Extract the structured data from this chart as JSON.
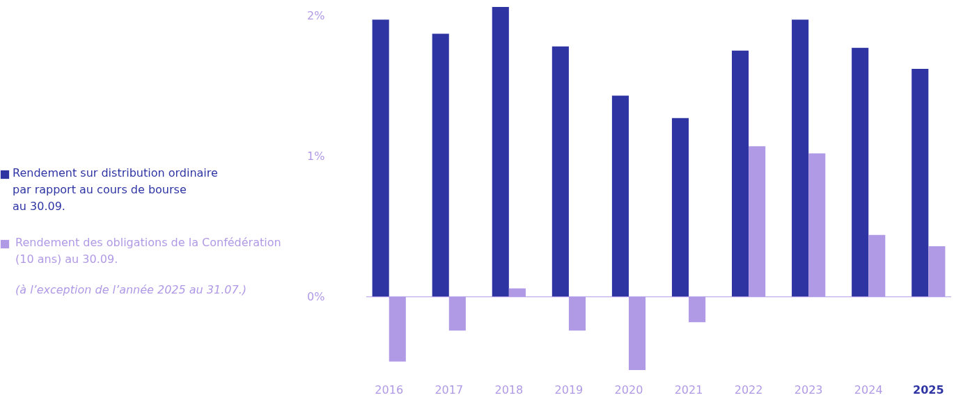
{
  "chart_data": {
    "type": "bar",
    "categories": [
      "2016",
      "2017",
      "2018",
      "2019",
      "2020",
      "2021",
      "2022",
      "2023",
      "2024",
      "2025"
    ],
    "series": [
      {
        "name": "Rendement sur distribution ordinaire\npar rapport au cours de bourse\nau 30.09.",
        "color": "#2e35a3",
        "values": [
          1.97,
          1.87,
          2.06,
          1.78,
          1.43,
          1.27,
          1.75,
          1.97,
          1.77,
          1.62
        ]
      },
      {
        "name": "Rendement des obligations de la Confédération\n(10 ans) au 30.09.",
        "color": "#b09ae6",
        "values": [
          -0.46,
          -0.24,
          0.06,
          -0.24,
          -0.52,
          -0.18,
          1.07,
          1.02,
          0.44,
          0.36
        ]
      }
    ],
    "annotations": [
      "(à l’exception de l’année 2025 au 31.07.)"
    ],
    "ylim": [
      -0.55,
      2.07
    ],
    "yticks": [
      {
        "value": 0,
        "label": "0%"
      },
      {
        "value": 1,
        "label": "1%"
      },
      {
        "value": 2,
        "label": "2%"
      }
    ],
    "ref_lines": [
      {
        "axis": "y",
        "value": 0,
        "color": "#b09ae6"
      }
    ],
    "grid": false,
    "legend": "left"
  }
}
